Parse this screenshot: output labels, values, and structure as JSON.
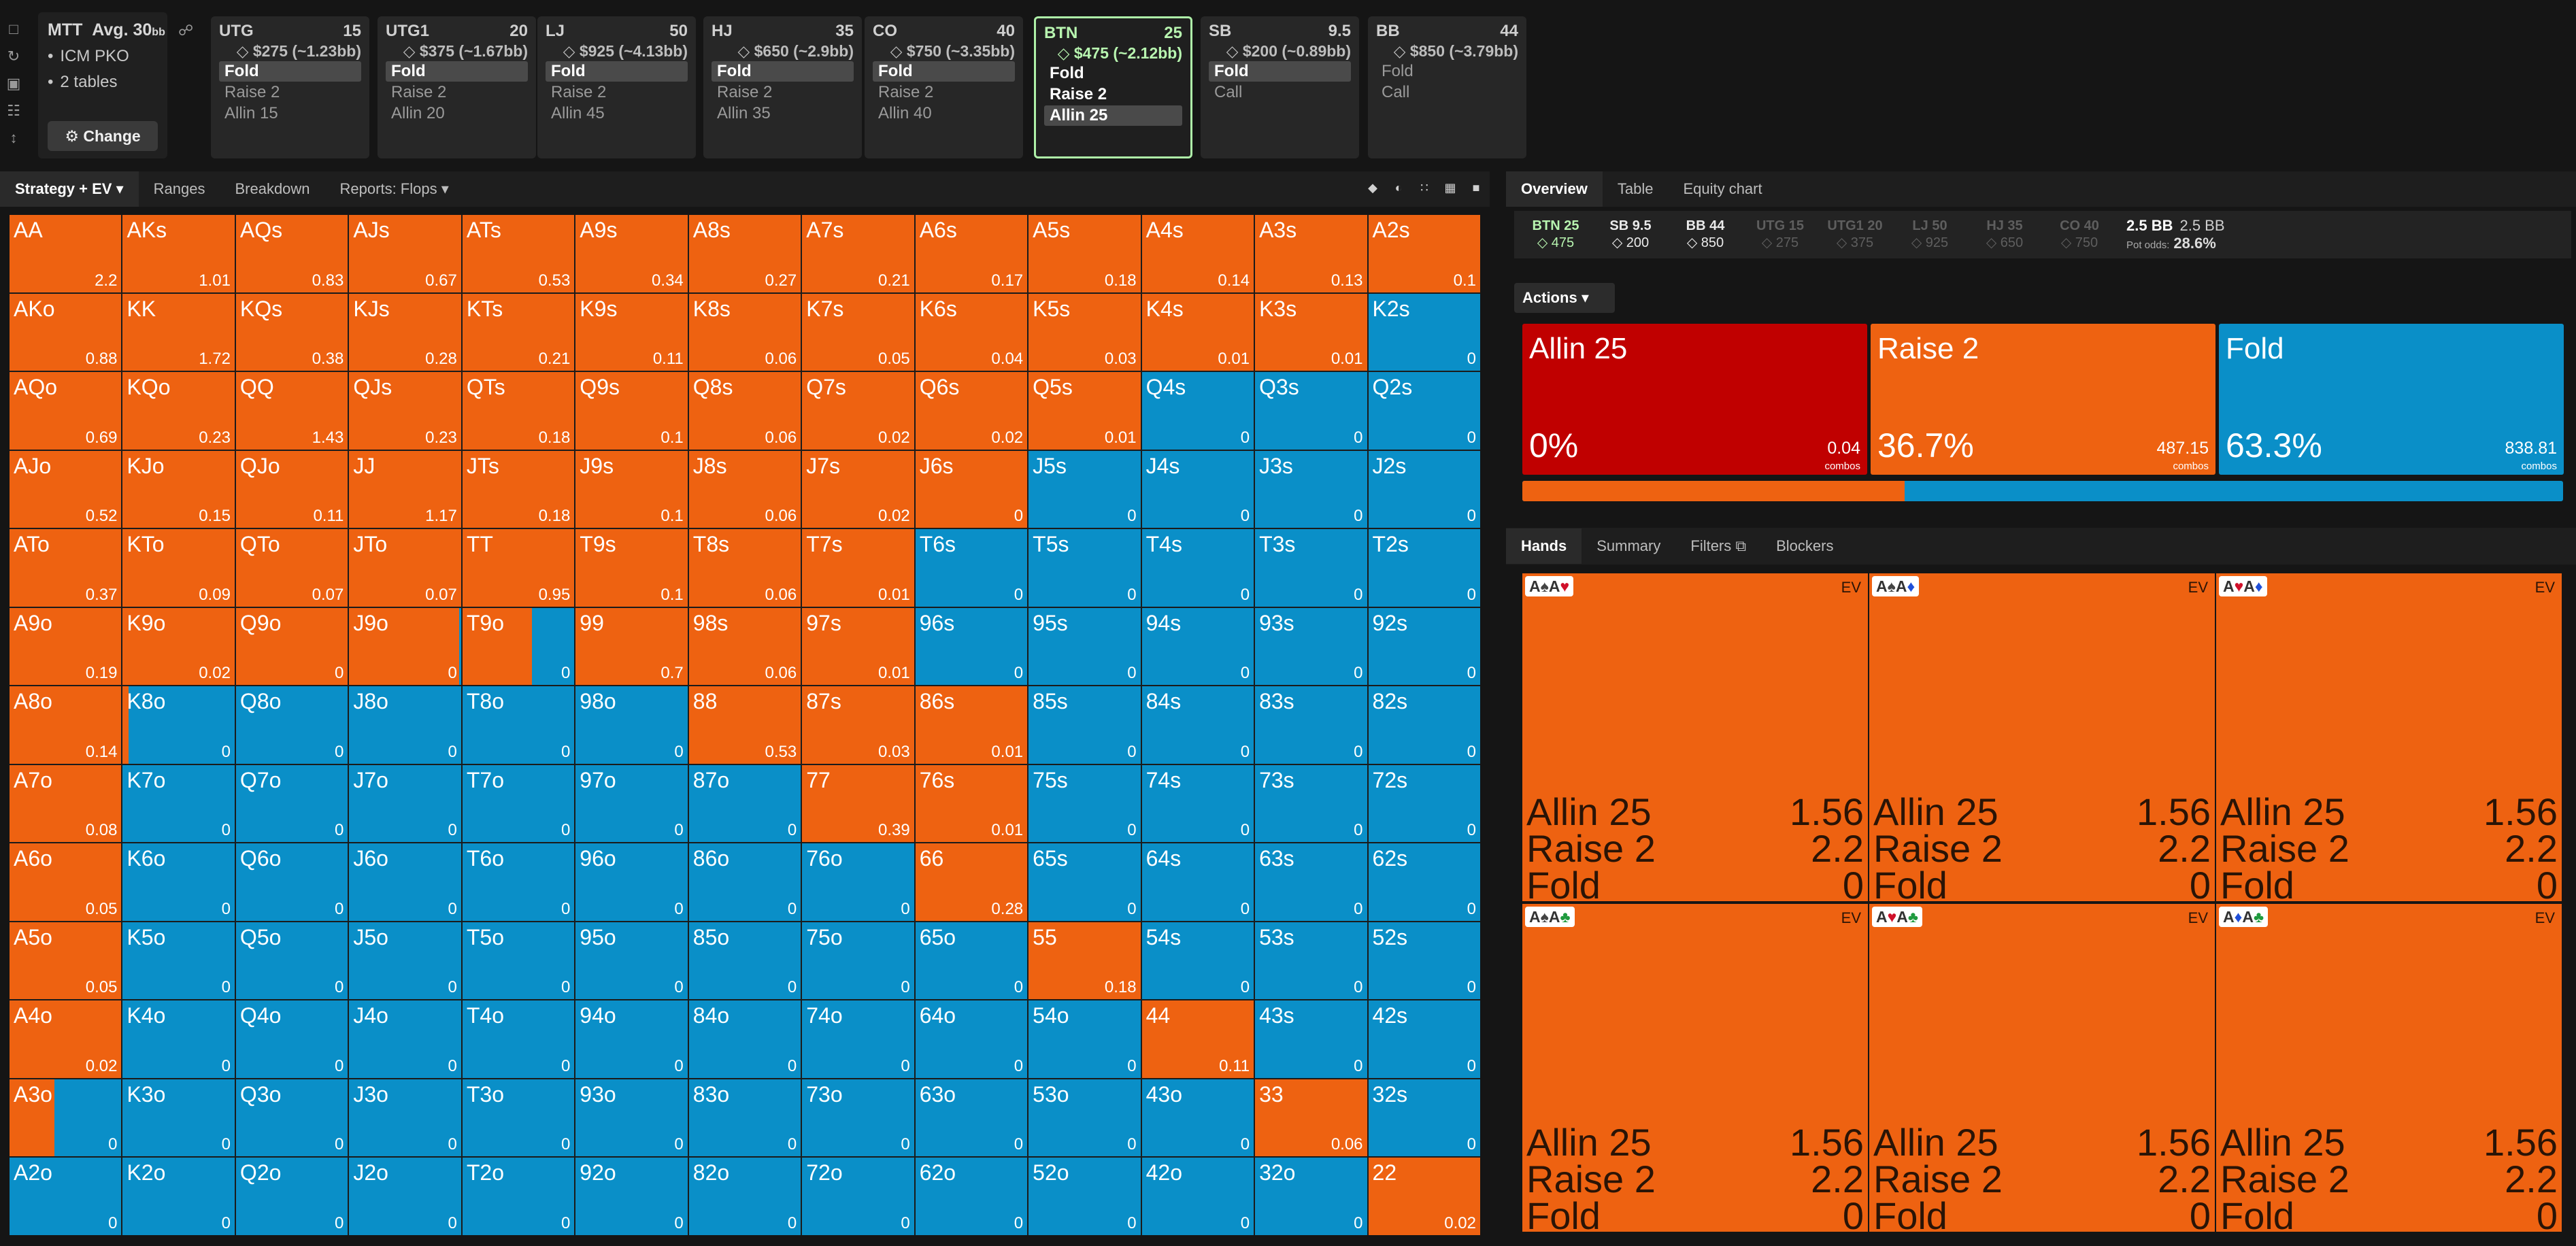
{
  "sidebar_icons": [
    "bookmark-icon",
    "history-icon",
    "save-icon",
    "controller-icon",
    "ruler-icon"
  ],
  "game": {
    "title": "MTT",
    "avg_label": "Avg. 30",
    "avg_unit": "bb",
    "format": "ICM PKO",
    "tables": "2 tables",
    "change_label": "Change"
  },
  "positions": [
    {
      "name": "UTG",
      "stack": "15",
      "bounty": "$275 (~1.23bb)",
      "actions": [
        "Fold",
        "Raise 2",
        "Allin 15"
      ],
      "selected": 0,
      "current": false
    },
    {
      "name": "UTG1",
      "stack": "20",
      "bounty": "$375 (~1.67bb)",
      "actions": [
        "Fold",
        "Raise 2",
        "Allin 20"
      ],
      "selected": 0,
      "current": false
    },
    {
      "name": "LJ",
      "stack": "50",
      "bounty": "$925 (~4.13bb)",
      "actions": [
        "Fold",
        "Raise 2",
        "Allin 45"
      ],
      "selected": 0,
      "current": false
    },
    {
      "name": "HJ",
      "stack": "35",
      "bounty": "$650 (~2.9bb)",
      "actions": [
        "Fold",
        "Raise 2",
        "Allin 35"
      ],
      "selected": 0,
      "current": false
    },
    {
      "name": "CO",
      "stack": "40",
      "bounty": "$750 (~3.35bb)",
      "actions": [
        "Fold",
        "Raise 2",
        "Allin 40"
      ],
      "selected": 0,
      "current": false
    },
    {
      "name": "BTN",
      "stack": "25",
      "bounty": "$475 (~2.12bb)",
      "actions": [
        "Fold",
        "Raise 2",
        "Allin 25"
      ],
      "selected": 2,
      "current": true
    },
    {
      "name": "SB",
      "stack": "9.5",
      "bounty": "$200 (~0.89bb)",
      "actions": [
        "Fold",
        "Call"
      ],
      "selected": 0,
      "current": false
    },
    {
      "name": "BB",
      "stack": "44",
      "bounty": "$850 (~3.79bb)",
      "actions": [
        "Fold",
        "Call"
      ],
      "selected": -1,
      "current": false
    }
  ],
  "grid_tabs": [
    "Strategy + EV",
    "Ranges",
    "Breakdown",
    "Reports: Flops"
  ],
  "view_icons": [
    "cube-icon",
    "half-icon",
    "small-grid-icon",
    "grid-icon",
    "square-icon"
  ],
  "colors": {
    "raise": "#ee6211",
    "fold": "#0a8fc8",
    "allin": "#c00000",
    "current": "#aef0a8"
  },
  "hands": [
    {
      "n": "AA",
      "ev": "2.2",
      "r": 1
    },
    {
      "n": "AKs",
      "ev": "1.01",
      "r": 1
    },
    {
      "n": "AQs",
      "ev": "0.83",
      "r": 1
    },
    {
      "n": "AJs",
      "ev": "0.67",
      "r": 1
    },
    {
      "n": "ATs",
      "ev": "0.53",
      "r": 1
    },
    {
      "n": "A9s",
      "ev": "0.34",
      "r": 1
    },
    {
      "n": "A8s",
      "ev": "0.27",
      "r": 1
    },
    {
      "n": "A7s",
      "ev": "0.21",
      "r": 1
    },
    {
      "n": "A6s",
      "ev": "0.17",
      "r": 1
    },
    {
      "n": "A5s",
      "ev": "0.18",
      "r": 1
    },
    {
      "n": "A4s",
      "ev": "0.14",
      "r": 1
    },
    {
      "n": "A3s",
      "ev": "0.13",
      "r": 1
    },
    {
      "n": "A2s",
      "ev": "0.1",
      "r": 1
    },
    {
      "n": "AKo",
      "ev": "0.88",
      "r": 1
    },
    {
      "n": "KK",
      "ev": "1.72",
      "r": 1
    },
    {
      "n": "KQs",
      "ev": "0.38",
      "r": 1
    },
    {
      "n": "KJs",
      "ev": "0.28",
      "r": 1
    },
    {
      "n": "KTs",
      "ev": "0.21",
      "r": 1
    },
    {
      "n": "K9s",
      "ev": "0.11",
      "r": 1
    },
    {
      "n": "K8s",
      "ev": "0.06",
      "r": 1
    },
    {
      "n": "K7s",
      "ev": "0.05",
      "r": 1
    },
    {
      "n": "K6s",
      "ev": "0.04",
      "r": 1
    },
    {
      "n": "K5s",
      "ev": "0.03",
      "r": 1
    },
    {
      "n": "K4s",
      "ev": "0.01",
      "r": 1
    },
    {
      "n": "K3s",
      "ev": "0.01",
      "r": 1
    },
    {
      "n": "K2s",
      "ev": "0",
      "r": 0
    },
    {
      "n": "AQo",
      "ev": "0.69",
      "r": 1
    },
    {
      "n": "KQo",
      "ev": "0.23",
      "r": 1
    },
    {
      "n": "QQ",
      "ev": "1.43",
      "r": 1
    },
    {
      "n": "QJs",
      "ev": "0.23",
      "r": 1
    },
    {
      "n": "QTs",
      "ev": "0.18",
      "r": 1
    },
    {
      "n": "Q9s",
      "ev": "0.1",
      "r": 1
    },
    {
      "n": "Q8s",
      "ev": "0.06",
      "r": 1
    },
    {
      "n": "Q7s",
      "ev": "0.02",
      "r": 1
    },
    {
      "n": "Q6s",
      "ev": "0.02",
      "r": 1
    },
    {
      "n": "Q5s",
      "ev": "0.01",
      "r": 1
    },
    {
      "n": "Q4s",
      "ev": "0",
      "r": 0
    },
    {
      "n": "Q3s",
      "ev": "0",
      "r": 0
    },
    {
      "n": "Q2s",
      "ev": "0",
      "r": 0
    },
    {
      "n": "AJo",
      "ev": "0.52",
      "r": 1
    },
    {
      "n": "KJo",
      "ev": "0.15",
      "r": 1
    },
    {
      "n": "QJo",
      "ev": "0.11",
      "r": 1
    },
    {
      "n": "JJ",
      "ev": "1.17",
      "r": 1
    },
    {
      "n": "JTs",
      "ev": "0.18",
      "r": 1
    },
    {
      "n": "J9s",
      "ev": "0.1",
      "r": 1
    },
    {
      "n": "J8s",
      "ev": "0.06",
      "r": 1
    },
    {
      "n": "J7s",
      "ev": "0.02",
      "r": 1
    },
    {
      "n": "J6s",
      "ev": "0",
      "r": 1
    },
    {
      "n": "J5s",
      "ev": "0",
      "r": 0
    },
    {
      "n": "J4s",
      "ev": "0",
      "r": 0
    },
    {
      "n": "J3s",
      "ev": "0",
      "r": 0
    },
    {
      "n": "J2s",
      "ev": "0",
      "r": 0
    },
    {
      "n": "ATo",
      "ev": "0.37",
      "r": 1
    },
    {
      "n": "KTo",
      "ev": "0.09",
      "r": 1
    },
    {
      "n": "QTo",
      "ev": "0.07",
      "r": 1
    },
    {
      "n": "JTo",
      "ev": "0.07",
      "r": 1
    },
    {
      "n": "TT",
      "ev": "0.95",
      "r": 1
    },
    {
      "n": "T9s",
      "ev": "0.1",
      "r": 1
    },
    {
      "n": "T8s",
      "ev": "0.06",
      "r": 1
    },
    {
      "n": "T7s",
      "ev": "0.01",
      "r": 1
    },
    {
      "n": "T6s",
      "ev": "0",
      "r": 0
    },
    {
      "n": "T5s",
      "ev": "0",
      "r": 0
    },
    {
      "n": "T4s",
      "ev": "0",
      "r": 0
    },
    {
      "n": "T3s",
      "ev": "0",
      "r": 0
    },
    {
      "n": "T2s",
      "ev": "0",
      "r": 0
    },
    {
      "n": "A9o",
      "ev": "0.19",
      "r": 1
    },
    {
      "n": "K9o",
      "ev": "0.02",
      "r": 1
    },
    {
      "n": "Q9o",
      "ev": "0",
      "r": 1
    },
    {
      "n": "J9o",
      "ev": "0",
      "r": 0.98
    },
    {
      "n": "T9o",
      "ev": "0",
      "r": 0.62
    },
    {
      "n": "99",
      "ev": "0.7",
      "r": 1
    },
    {
      "n": "98s",
      "ev": "0.06",
      "r": 1
    },
    {
      "n": "97s",
      "ev": "0.01",
      "r": 1
    },
    {
      "n": "96s",
      "ev": "0",
      "r": 0
    },
    {
      "n": "95s",
      "ev": "0",
      "r": 0
    },
    {
      "n": "94s",
      "ev": "0",
      "r": 0
    },
    {
      "n": "93s",
      "ev": "0",
      "r": 0
    },
    {
      "n": "92s",
      "ev": "0",
      "r": 0
    },
    {
      "n": "A8o",
      "ev": "0.14",
      "r": 1
    },
    {
      "n": "K8o",
      "ev": "0",
      "r": 0.05
    },
    {
      "n": "Q8o",
      "ev": "0",
      "r": 0
    },
    {
      "n": "J8o",
      "ev": "0",
      "r": 0
    },
    {
      "n": "T8o",
      "ev": "0",
      "r": 0
    },
    {
      "n": "98o",
      "ev": "0",
      "r": 0
    },
    {
      "n": "88",
      "ev": "0.53",
      "r": 1
    },
    {
      "n": "87s",
      "ev": "0.03",
      "r": 1
    },
    {
      "n": "86s",
      "ev": "0.01",
      "r": 1
    },
    {
      "n": "85s",
      "ev": "0",
      "r": 0
    },
    {
      "n": "84s",
      "ev": "0",
      "r": 0
    },
    {
      "n": "83s",
      "ev": "0",
      "r": 0
    },
    {
      "n": "82s",
      "ev": "0",
      "r": 0
    },
    {
      "n": "A7o",
      "ev": "0.08",
      "r": 1
    },
    {
      "n": "K7o",
      "ev": "0",
      "r": 0
    },
    {
      "n": "Q7o",
      "ev": "0",
      "r": 0
    },
    {
      "n": "J7o",
      "ev": "0",
      "r": 0
    },
    {
      "n": "T7o",
      "ev": "0",
      "r": 0
    },
    {
      "n": "97o",
      "ev": "0",
      "r": 0
    },
    {
      "n": "87o",
      "ev": "0",
      "r": 0
    },
    {
      "n": "77",
      "ev": "0.39",
      "r": 1
    },
    {
      "n": "76s",
      "ev": "0.01",
      "r": 1
    },
    {
      "n": "75s",
      "ev": "0",
      "r": 0
    },
    {
      "n": "74s",
      "ev": "0",
      "r": 0
    },
    {
      "n": "73s",
      "ev": "0",
      "r": 0
    },
    {
      "n": "72s",
      "ev": "0",
      "r": 0
    },
    {
      "n": "A6o",
      "ev": "0.05",
      "r": 1
    },
    {
      "n": "K6o",
      "ev": "0",
      "r": 0
    },
    {
      "n": "Q6o",
      "ev": "0",
      "r": 0
    },
    {
      "n": "J6o",
      "ev": "0",
      "r": 0
    },
    {
      "n": "T6o",
      "ev": "0",
      "r": 0
    },
    {
      "n": "96o",
      "ev": "0",
      "r": 0
    },
    {
      "n": "86o",
      "ev": "0",
      "r": 0
    },
    {
      "n": "76o",
      "ev": "0",
      "r": 0
    },
    {
      "n": "66",
      "ev": "0.28",
      "r": 1
    },
    {
      "n": "65s",
      "ev": "0",
      "r": 0
    },
    {
      "n": "64s",
      "ev": "0",
      "r": 0
    },
    {
      "n": "63s",
      "ev": "0",
      "r": 0
    },
    {
      "n": "62s",
      "ev": "0",
      "r": 0
    },
    {
      "n": "A5o",
      "ev": "0.05",
      "r": 1
    },
    {
      "n": "K5o",
      "ev": "0",
      "r": 0
    },
    {
      "n": "Q5o",
      "ev": "0",
      "r": 0
    },
    {
      "n": "J5o",
      "ev": "0",
      "r": 0
    },
    {
      "n": "T5o",
      "ev": "0",
      "r": 0
    },
    {
      "n": "95o",
      "ev": "0",
      "r": 0
    },
    {
      "n": "85o",
      "ev": "0",
      "r": 0
    },
    {
      "n": "75o",
      "ev": "0",
      "r": 0
    },
    {
      "n": "65o",
      "ev": "0",
      "r": 0
    },
    {
      "n": "55",
      "ev": "0.18",
      "r": 1
    },
    {
      "n": "54s",
      "ev": "0",
      "r": 0
    },
    {
      "n": "53s",
      "ev": "0",
      "r": 0
    },
    {
      "n": "52s",
      "ev": "0",
      "r": 0
    },
    {
      "n": "A4o",
      "ev": "0.02",
      "r": 1
    },
    {
      "n": "K4o",
      "ev": "0",
      "r": 0
    },
    {
      "n": "Q4o",
      "ev": "0",
      "r": 0
    },
    {
      "n": "J4o",
      "ev": "0",
      "r": 0
    },
    {
      "n": "T4o",
      "ev": "0",
      "r": 0
    },
    {
      "n": "94o",
      "ev": "0",
      "r": 0
    },
    {
      "n": "84o",
      "ev": "0",
      "r": 0
    },
    {
      "n": "74o",
      "ev": "0",
      "r": 0
    },
    {
      "n": "64o",
      "ev": "0",
      "r": 0
    },
    {
      "n": "54o",
      "ev": "0",
      "r": 0
    },
    {
      "n": "44",
      "ev": "0.11",
      "r": 1
    },
    {
      "n": "43s",
      "ev": "0",
      "r": 0
    },
    {
      "n": "42s",
      "ev": "0",
      "r": 0
    },
    {
      "n": "A3o",
      "ev": "0",
      "r": 0.4
    },
    {
      "n": "K3o",
      "ev": "0",
      "r": 0
    },
    {
      "n": "Q3o",
      "ev": "0",
      "r": 0
    },
    {
      "n": "J3o",
      "ev": "0",
      "r": 0
    },
    {
      "n": "T3o",
      "ev": "0",
      "r": 0
    },
    {
      "n": "93o",
      "ev": "0",
      "r": 0
    },
    {
      "n": "83o",
      "ev": "0",
      "r": 0
    },
    {
      "n": "73o",
      "ev": "0",
      "r": 0
    },
    {
      "n": "63o",
      "ev": "0",
      "r": 0
    },
    {
      "n": "53o",
      "ev": "0",
      "r": 0
    },
    {
      "n": "43o",
      "ev": "0",
      "r": 0
    },
    {
      "n": "33",
      "ev": "0.06",
      "r": 1
    },
    {
      "n": "32s",
      "ev": "0",
      "r": 0
    },
    {
      "n": "A2o",
      "ev": "0",
      "r": 0
    },
    {
      "n": "K2o",
      "ev": "0",
      "r": 0
    },
    {
      "n": "Q2o",
      "ev": "0",
      "r": 0
    },
    {
      "n": "J2o",
      "ev": "0",
      "r": 0
    },
    {
      "n": "T2o",
      "ev": "0",
      "r": 0
    },
    {
      "n": "92o",
      "ev": "0",
      "r": 0
    },
    {
      "n": "82o",
      "ev": "0",
      "r": 0
    },
    {
      "n": "72o",
      "ev": "0",
      "r": 0
    },
    {
      "n": "62o",
      "ev": "0",
      "r": 0
    },
    {
      "n": "52o",
      "ev": "0",
      "r": 0
    },
    {
      "n": "42o",
      "ev": "0",
      "r": 0
    },
    {
      "n": "32o",
      "ev": "0",
      "r": 0
    },
    {
      "n": "22",
      "ev": "0.02",
      "r": 1
    }
  ],
  "right_tabs": [
    "Overview",
    "Table",
    "Equity chart"
  ],
  "summary": {
    "players": [
      {
        "n": "BTN 25",
        "v": "475",
        "s": "hi"
      },
      {
        "n": "SB 9.5",
        "v": "200",
        "s": "w"
      },
      {
        "n": "BB 44",
        "v": "850",
        "s": "w"
      },
      {
        "n": "UTG 15",
        "v": "275",
        "s": "d"
      },
      {
        "n": "UTG1 20",
        "v": "375",
        "s": "d"
      },
      {
        "n": "LJ 50",
        "v": "925",
        "s": "d"
      },
      {
        "n": "HJ 35",
        "v": "650",
        "s": "d"
      },
      {
        "n": "CO 40",
        "v": "750",
        "s": "d"
      }
    ],
    "pot": "2.5 BB",
    "pot2": "2.5 BB",
    "pot_odds_label": "Pot odds:",
    "pot_odds": "28.6%"
  },
  "actions_dropdown": "Actions",
  "actions": [
    {
      "name": "Allin 25",
      "pct": "0%",
      "combos": "0.04",
      "combos_label": "combos",
      "color": "#c00000"
    },
    {
      "name": "Raise 2",
      "pct": "36.7%",
      "combos": "487.15",
      "combos_label": "combos",
      "color": "#ee6211"
    },
    {
      "name": "Fold",
      "pct": "63.3%",
      "combos": "838.81",
      "combos_label": "combos",
      "color": "#0a8fc8"
    }
  ],
  "freq_bar": {
    "allin": 0.0,
    "raise": 0.367,
    "fold": 0.633
  },
  "hand_tabs": [
    "Hands",
    "Summary",
    "Filters",
    "Blockers"
  ],
  "combos": [
    {
      "cards": [
        [
          "A",
          "spade"
        ],
        [
          "A",
          "heart"
        ]
      ],
      "ev_label": "EV",
      "rows": [
        [
          "Allin 25",
          "1.56"
        ],
        [
          "Raise 2",
          "2.2"
        ],
        [
          "Fold",
          "0"
        ]
      ]
    },
    {
      "cards": [
        [
          "A",
          "spade"
        ],
        [
          "A",
          "diam"
        ]
      ],
      "ev_label": "EV",
      "rows": [
        [
          "Allin 25",
          "1.56"
        ],
        [
          "Raise 2",
          "2.2"
        ],
        [
          "Fold",
          "0"
        ]
      ]
    },
    {
      "cards": [
        [
          "A",
          "heart"
        ],
        [
          "A",
          "diam"
        ]
      ],
      "ev_label": "EV",
      "rows": [
        [
          "Allin 25",
          "1.56"
        ],
        [
          "Raise 2",
          "2.2"
        ],
        [
          "Fold",
          "0"
        ]
      ]
    },
    {
      "cards": [
        [
          "A",
          "spade"
        ],
        [
          "A",
          "club"
        ]
      ],
      "ev_label": "EV",
      "rows": [
        [
          "Allin 25",
          "1.56"
        ],
        [
          "Raise 2",
          "2.2"
        ],
        [
          "Fold",
          "0"
        ]
      ]
    },
    {
      "cards": [
        [
          "A",
          "heart"
        ],
        [
          "A",
          "club"
        ]
      ],
      "ev_label": "EV",
      "rows": [
        [
          "Allin 25",
          "1.56"
        ],
        [
          "Raise 2",
          "2.2"
        ],
        [
          "Fold",
          "0"
        ]
      ]
    },
    {
      "cards": [
        [
          "A",
          "diam"
        ],
        [
          "A",
          "club"
        ]
      ],
      "ev_label": "EV",
      "rows": [
        [
          "Allin 25",
          "1.56"
        ],
        [
          "Raise 2",
          "2.2"
        ],
        [
          "Fold",
          "0"
        ]
      ]
    }
  ]
}
